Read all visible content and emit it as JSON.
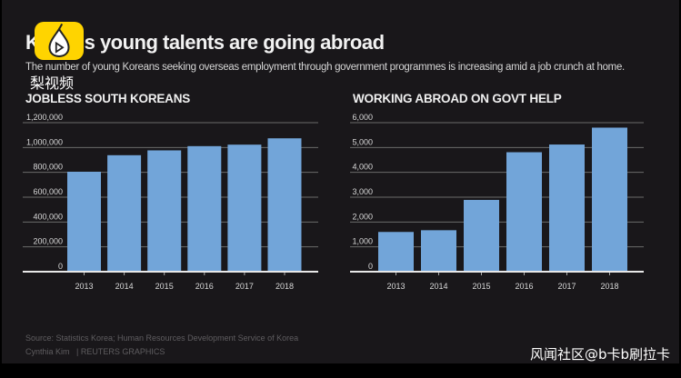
{
  "title": "Korea's young talents are going abroad",
  "subtitle": "The number of young Koreans seeking overseas employment through government programmes is increasing amid a job crunch at home.",
  "footer": {
    "source": "Source: Statistics Korea; Human Resources Development Service of Korea",
    "credit": "Cynthia Kim   | REUTERS GRAPHICS"
  },
  "watermarks": {
    "logo_text": "梨视频",
    "bottom_right": "风闻社区@b卡b刷拉卡"
  },
  "colors": {
    "bar": "#72a5d9",
    "background": "#19171a",
    "grid": "#6b6b6b"
  },
  "chart_data": [
    {
      "type": "bar",
      "title": "JOBLESS SOUTH KOREANS",
      "categories": [
        "2013",
        "2014",
        "2015",
        "2016",
        "2017",
        "2018"
      ],
      "values": [
        805000,
        938000,
        977000,
        1011000,
        1023000,
        1074000
      ],
      "ylim": [
        0,
        1200000
      ],
      "yticks": [
        "0",
        "200,000",
        "400,000",
        "600,000",
        "800,000",
        "1,000,000",
        "1,200,000"
      ],
      "grid": true
    },
    {
      "type": "bar",
      "title": "WORKING ABROAD ON GOVT HELP",
      "categories": [
        "2013",
        "2014",
        "2015",
        "2016",
        "2017",
        "2018"
      ],
      "values": [
        1600,
        1670,
        2890,
        4810,
        5120,
        5800
      ],
      "ylim": [
        0,
        6000
      ],
      "yticks": [
        "0",
        "1,000",
        "2,000",
        "3,000",
        "4,000",
        "5,000",
        "6,000"
      ],
      "grid": true
    }
  ]
}
